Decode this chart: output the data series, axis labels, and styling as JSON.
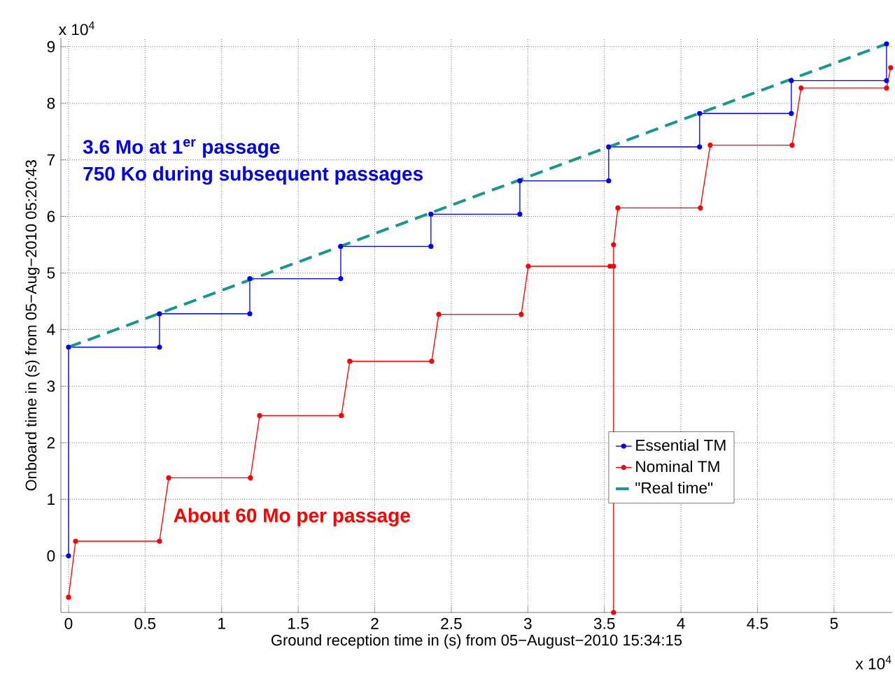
{
  "chart_data": {
    "type": "line",
    "xlabel": "Ground reception time in (s) from 05−August−2010 15:34:15",
    "ylabel": "Onboard time in (s) from 05−Aug−2010 05:20:43",
    "annotations": [
      "x 10$^{4}$",
      "x 10$^{4}$",
      "3.6 Mo at 1$^{er}$ passage",
      "750 Ko during subsequent passages",
      "About 60 Mo per passage"
    ],
    "xlim": [
      -0.05,
      5.38
    ],
    "ylim": [
      -1.0,
      9.15
    ],
    "xticks": [
      0,
      0.5,
      1,
      1.5,
      2,
      2.5,
      3,
      3.5,
      4,
      4.5,
      5
    ],
    "yticks": [
      0,
      1,
      2,
      3,
      4,
      5,
      6,
      7,
      8,
      9
    ],
    "grid": true,
    "legend": "bottom right",
    "series": [
      {
        "name": "Essential TM",
        "color": "#0000ff",
        "marker": "circle",
        "line_style": "solid",
        "x": [
          0,
          0,
          0.594,
          0.594,
          1.184,
          1.184,
          1.778,
          1.778,
          2.367,
          2.367,
          2.948,
          2.948,
          3.528,
          3.528,
          4.122,
          4.122,
          4.721,
          4.721,
          5.343,
          5.343
        ],
        "values": [
          0,
          3.69,
          3.69,
          4.28,
          4.28,
          4.9,
          4.9,
          5.47,
          5.47,
          6.04,
          6.04,
          6.63,
          6.63,
          7.23,
          7.23,
          7.82,
          7.82,
          8.4,
          8.4,
          9.05
        ]
      },
      {
        "name": "Nominal TM",
        "color": "#ff0000",
        "marker": "circle",
        "line_style": "solid",
        "x": [
          0,
          0.046,
          0.594,
          0.654,
          1.188,
          1.248,
          1.782,
          1.837,
          2.372,
          2.418,
          2.957,
          3.003,
          3.537,
          3.56,
          3.56,
          3.56,
          3.588,
          4.127,
          4.191,
          4.726,
          4.785,
          5.343,
          5.37
        ],
        "values": [
          -0.73,
          0.26,
          0.26,
          1.38,
          1.38,
          2.48,
          2.48,
          3.44,
          3.44,
          4.27,
          4.27,
          5.12,
          5.12,
          5.12,
          -1.0,
          5.5,
          6.15,
          6.15,
          7.26,
          7.26,
          8.27,
          8.27,
          8.63
        ]
      },
      {
        "name": "\"Real time\"",
        "color": "#16998c",
        "marker": "none",
        "line_style": "dashed",
        "x": [
          0,
          5.343
        ],
        "values": [
          3.69,
          9.05
        ]
      }
    ]
  }
}
